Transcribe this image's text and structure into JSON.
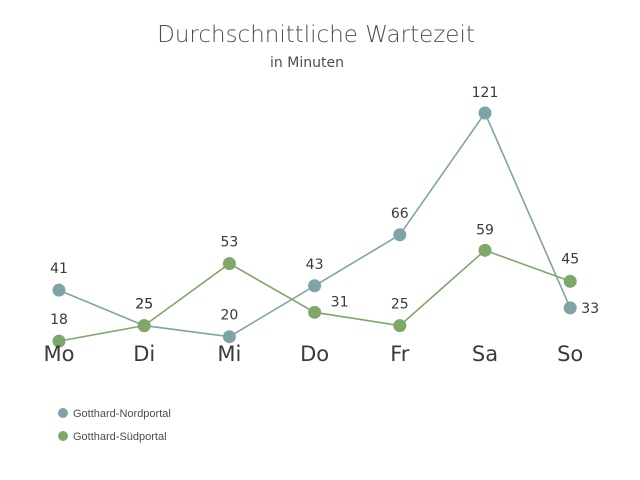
{
  "chart_data": {
    "type": "line",
    "title": "Durchschnittliche Wartezeit",
    "subtitle": "in Minuten",
    "categories": [
      "Mo",
      "Di",
      "Mi",
      "Do",
      "Fr",
      "Sa",
      "So"
    ],
    "series": [
      {
        "name": "Gotthard-Nordportal",
        "color": "#7fa4a8",
        "values": [
          41,
          25,
          20,
          43,
          66,
          121,
          33
        ]
      },
      {
        "name": "Gotthard-Südportal",
        "color": "#7ea86a",
        "values": [
          18,
          25,
          53,
          31,
          25,
          59,
          45
        ]
      }
    ],
    "xlabel": "",
    "ylabel": "",
    "ylim": [
      0,
      130
    ],
    "grid": false,
    "legend": "bottom-left"
  }
}
